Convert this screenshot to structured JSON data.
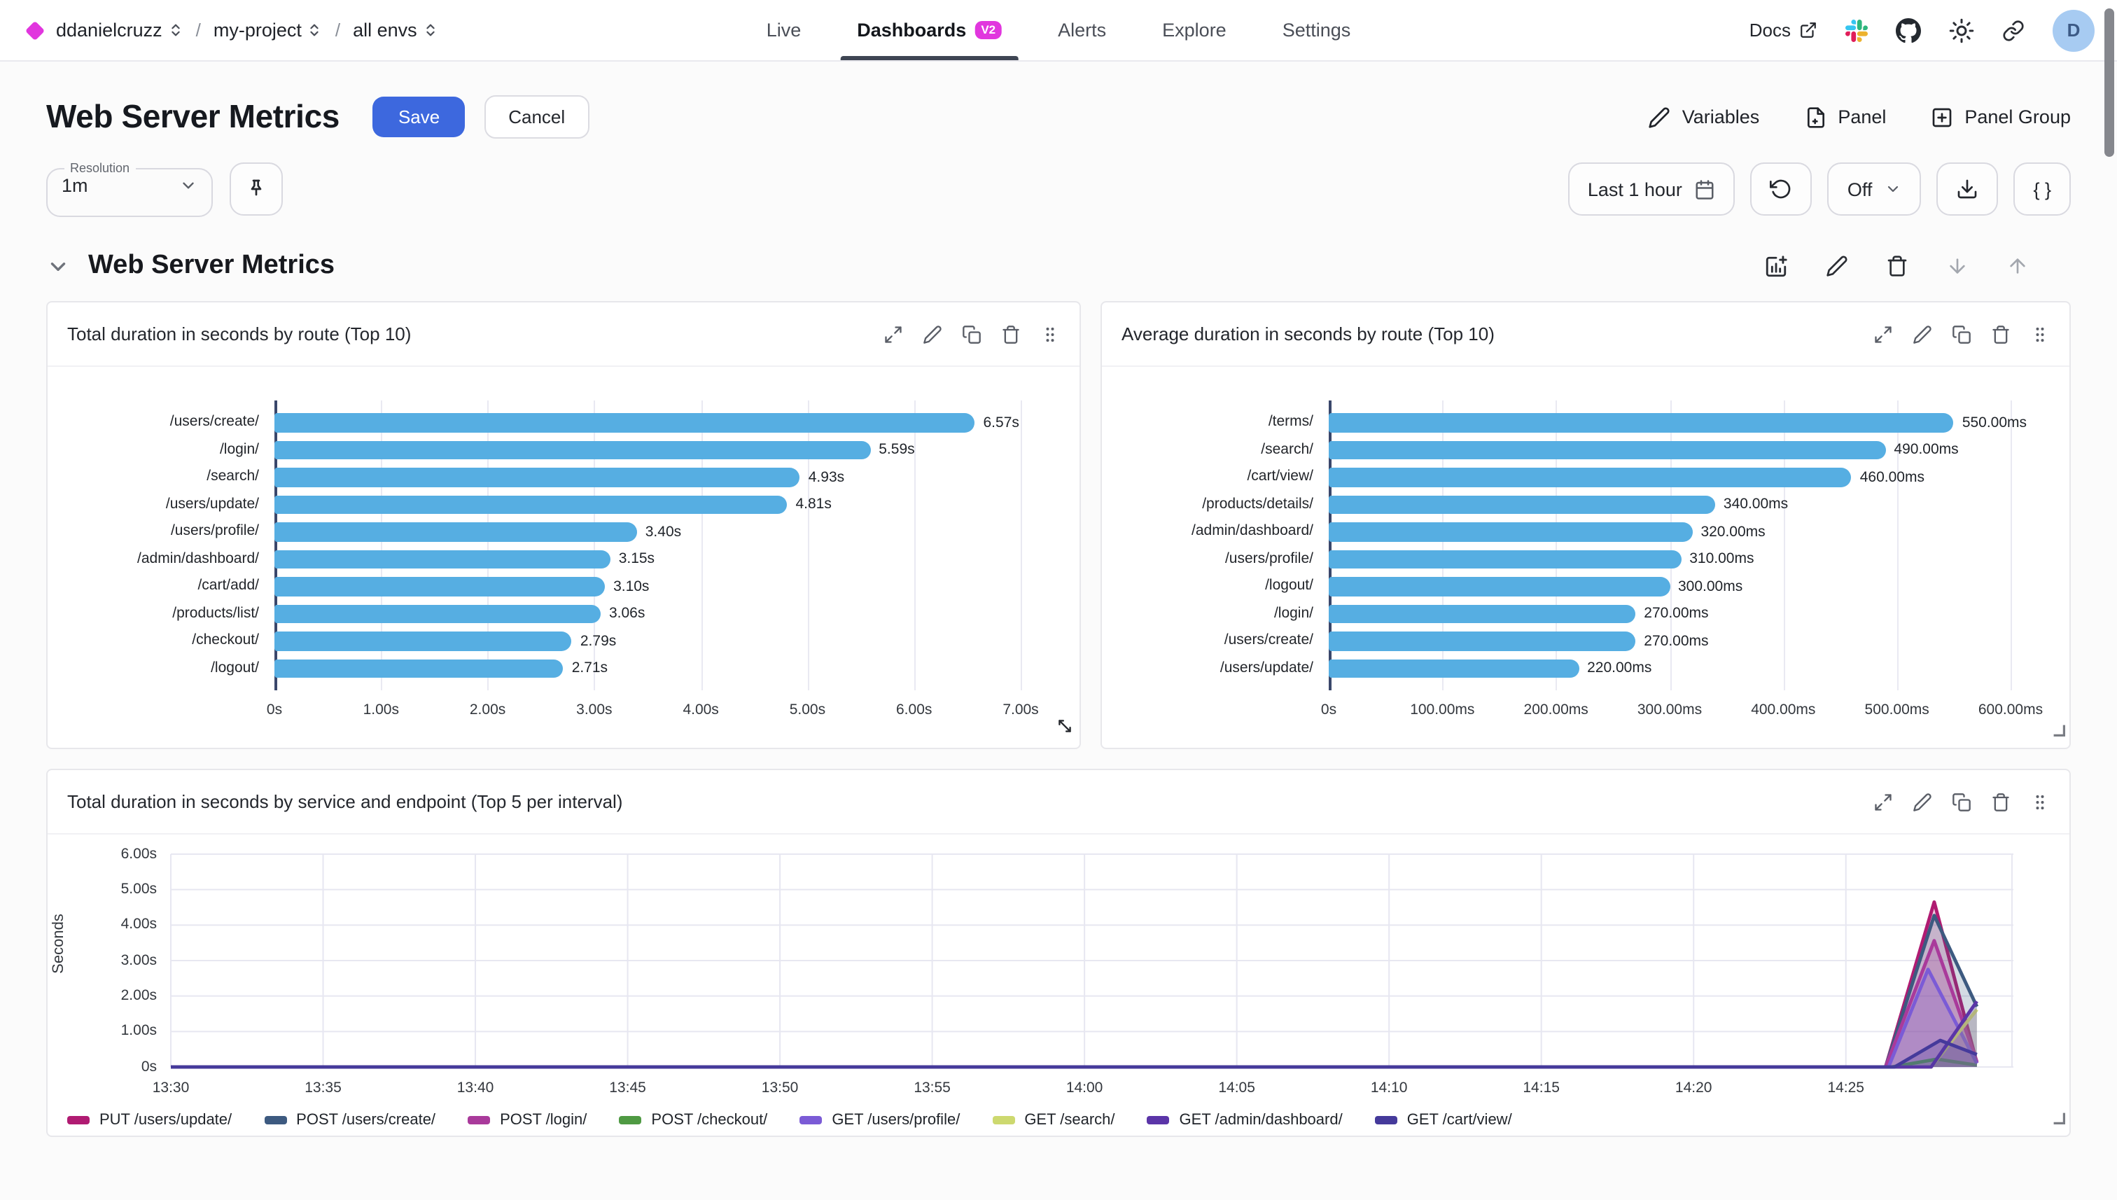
{
  "topbar": {
    "org": "ddanielcruzz",
    "project": "my-project",
    "environment": "all envs",
    "separator": "/",
    "nav": [
      {
        "label": "Live"
      },
      {
        "label": "Dashboards",
        "badge": "V2",
        "active": true
      },
      {
        "label": "Alerts"
      },
      {
        "label": "Explore"
      },
      {
        "label": "Settings"
      }
    ],
    "docs_label": "Docs",
    "avatar_initial": "D"
  },
  "header": {
    "title": "Web Server Metrics",
    "save_label": "Save",
    "cancel_label": "Cancel",
    "variables_label": "Variables",
    "panel_label": "Panel",
    "panel_group_label": "Panel Group"
  },
  "toolbar": {
    "resolution_label": "Resolution",
    "resolution_value": "1m",
    "time_range_label": "Last 1 hour",
    "refresh_interval_label": "Off",
    "braces_label": "{ }"
  },
  "section": {
    "title": "Web Server Metrics"
  },
  "colors": {
    "accent_magenta": "#E136DE",
    "primary_blue": "#3D68DE",
    "bar_blue": "#56AEE2"
  },
  "chart_data": [
    {
      "type": "bar",
      "orientation": "horizontal",
      "title": "Total duration in seconds by route (Top 10)",
      "categories": [
        "/users/create/",
        "/login/",
        "/search/",
        "/users/update/",
        "/users/profile/",
        "/admin/dashboard/",
        "/cart/add/",
        "/products/list/",
        "/checkout/",
        "/logout/"
      ],
      "values": [
        6.57,
        5.59,
        4.93,
        4.81,
        3.4,
        3.15,
        3.1,
        3.06,
        2.79,
        2.71
      ],
      "value_labels": [
        "6.57s",
        "5.59s",
        "4.93s",
        "4.81s",
        "3.40s",
        "3.15s",
        "3.10s",
        "3.06s",
        "2.79s",
        "2.71s"
      ],
      "xmax": 7,
      "tick_values": [
        0,
        1,
        2,
        3,
        4,
        5,
        6,
        7
      ],
      "tick_labels": [
        "0s",
        "1.00s",
        "2.00s",
        "3.00s",
        "4.00s",
        "5.00s",
        "6.00s",
        "7.00s"
      ],
      "bar_color": "#56AEE2"
    },
    {
      "type": "bar",
      "orientation": "horizontal",
      "title": "Average duration in seconds by route (Top 10)",
      "categories": [
        "/terms/",
        "/search/",
        "/cart/view/",
        "/products/details/",
        "/admin/dashboard/",
        "/users/profile/",
        "/logout/",
        "/login/",
        "/users/create/",
        "/users/update/"
      ],
      "values": [
        550,
        490,
        460,
        340,
        320,
        310,
        300,
        270,
        270,
        220
      ],
      "value_labels": [
        "550.00ms",
        "490.00ms",
        "460.00ms",
        "340.00ms",
        "320.00ms",
        "310.00ms",
        "300.00ms",
        "270.00ms",
        "270.00ms",
        "220.00ms"
      ],
      "xmax": 600,
      "tick_values": [
        0,
        100,
        200,
        300,
        400,
        500,
        600
      ],
      "tick_labels": [
        "0s",
        "100.00ms",
        "200.00ms",
        "300.00ms",
        "400.00ms",
        "500.00ms",
        "600.00ms"
      ],
      "bar_color": "#56AEE2"
    },
    {
      "type": "area",
      "title": "Total duration in seconds by service and endpoint (Top 5 per interval)",
      "ylabel": "Seconds",
      "ymax": 6,
      "ytick_values": [
        0,
        1,
        2,
        3,
        4,
        5,
        6
      ],
      "ytick_labels": [
        "0s",
        "1.00s",
        "2.00s",
        "3.00s",
        "4.00s",
        "5.00s",
        "6.00s"
      ],
      "xtick_minutes": [
        0,
        5,
        10,
        15,
        20,
        25,
        30,
        35,
        40,
        45,
        50,
        55
      ],
      "xtick_labels": [
        "13:30",
        "13:35",
        "13:40",
        "13:45",
        "13:50",
        "13:55",
        "14:00",
        "14:05",
        "14:10",
        "14:15",
        "14:20",
        "14:25"
      ],
      "x_max_minutes": 60.5,
      "series": [
        {
          "name": "PUT /users/update/",
          "color": "#B01B72",
          "points": [
            [
              0,
              0
            ],
            [
              56.3,
              0
            ],
            [
              57.9,
              4.65
            ],
            [
              59.3,
              0.12
            ]
          ]
        },
        {
          "name": "POST /users/create/",
          "color": "#3D5A80",
          "points": [
            [
              0,
              0
            ],
            [
              56.3,
              0
            ],
            [
              57.9,
              4.27
            ],
            [
              59.3,
              1.7
            ]
          ]
        },
        {
          "name": "POST /login/",
          "color": "#A93A9B",
          "points": [
            [
              0,
              0
            ],
            [
              56.3,
              0
            ],
            [
              57.9,
              3.56
            ],
            [
              59.3,
              0.15
            ]
          ]
        },
        {
          "name": "POST /checkout/",
          "color": "#4F9A43",
          "points": [
            [
              0,
              0
            ],
            [
              56.5,
              0
            ],
            [
              58.0,
              0.22
            ],
            [
              59.3,
              0.05
            ]
          ]
        },
        {
          "name": "GET /users/profile/",
          "color": "#7B5BD6",
          "points": [
            [
              0,
              0
            ],
            [
              56.4,
              0
            ],
            [
              57.7,
              2.75
            ],
            [
              59.3,
              0.1
            ]
          ]
        },
        {
          "name": "GET /search/",
          "color": "#CDD96F",
          "points": [
            [
              0,
              0
            ],
            [
              57.8,
              0
            ],
            [
              59.3,
              1.62
            ]
          ]
        },
        {
          "name": "GET /admin/dashboard/",
          "color": "#5B35A8",
          "points": [
            [
              0,
              0
            ],
            [
              57.8,
              0
            ],
            [
              59.3,
              1.85
            ]
          ]
        },
        {
          "name": "GET /cart/view/",
          "color": "#453A9B",
          "points": [
            [
              0,
              0
            ],
            [
              56.6,
              0
            ],
            [
              58.1,
              0.75
            ],
            [
              59.3,
              0.35
            ]
          ]
        }
      ]
    }
  ]
}
